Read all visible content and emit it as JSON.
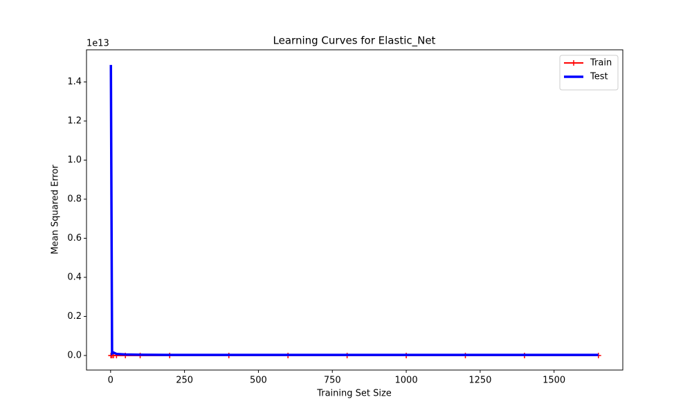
{
  "chart_data": {
    "type": "line",
    "title": "Learning Curves for Elastic_Net",
    "xlabel": "Training Set Size",
    "ylabel": "Mean Squared Error",
    "y_offset_label": "1e13",
    "x": [
      1,
      5,
      10,
      20,
      50,
      100,
      200,
      400,
      600,
      800,
      1000,
      1200,
      1400,
      1650
    ],
    "series": [
      {
        "name": "Train",
        "color": "#ff0000",
        "marker": "+",
        "linewidth": 2,
        "values": [
          0,
          0,
          0,
          0,
          0,
          0,
          0,
          0,
          0,
          0,
          0,
          0,
          0,
          0
        ]
      },
      {
        "name": "Test",
        "color": "#0000ff",
        "linewidth": 3.5,
        "values": [
          14870000000000,
          100000000000,
          150000000000,
          80000000000,
          50000000000,
          40000000000,
          30000000000,
          30000000000,
          30000000000,
          30000000000,
          30000000000,
          30000000000,
          30000000000,
          30000000000
        ]
      }
    ],
    "xlim": [
      -81.5,
      1732.5
    ],
    "ylim": [
      -745000000000,
      15645000000000
    ],
    "xticks": [
      0,
      250,
      500,
      750,
      1000,
      1250,
      1500
    ],
    "yticks": [
      {
        "value": 0,
        "label": "0.0"
      },
      {
        "value": 2000000000000,
        "label": "0.2"
      },
      {
        "value": 4000000000000,
        "label": "0.4"
      },
      {
        "value": 6000000000000,
        "label": "0.6"
      },
      {
        "value": 8000000000000,
        "label": "0.8"
      },
      {
        "value": 10000000000000,
        "label": "1.0"
      },
      {
        "value": 12000000000000,
        "label": "1.2"
      },
      {
        "value": 14000000000000,
        "label": "1.4"
      }
    ],
    "grid": false,
    "legend": "upper right"
  }
}
